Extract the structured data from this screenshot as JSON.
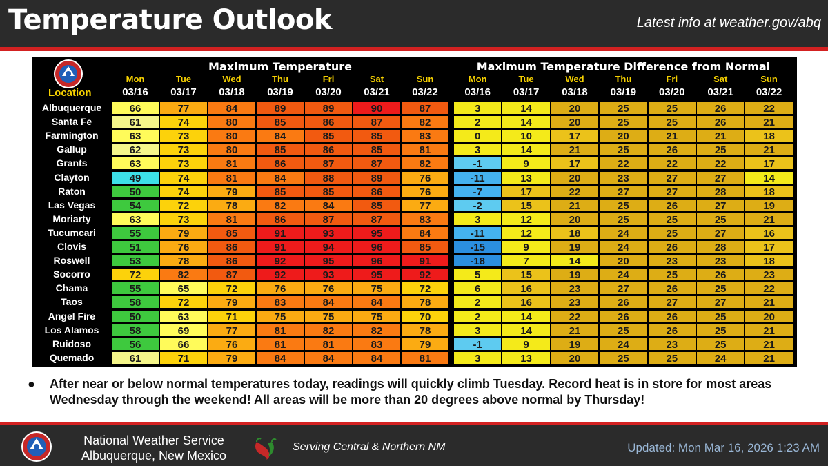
{
  "header": {
    "title": "Temperature Outlook",
    "info": "Latest info at weather.gov/abq"
  },
  "table": {
    "max_title": "Maximum Temperature",
    "diff_title": "Maximum Temperature Difference from Normal",
    "location_header": "Location",
    "days": [
      "Mon",
      "Tue",
      "Wed",
      "Thu",
      "Fri",
      "Sat",
      "Sun"
    ],
    "dates": [
      "03/16",
      "03/17",
      "03/18",
      "03/19",
      "03/20",
      "03/21",
      "03/22"
    ],
    "rows": [
      {
        "location": "Albuquerque",
        "max": [
          66,
          77,
          84,
          89,
          89,
          90,
          87
        ],
        "diff": [
          3,
          14,
          20,
          25,
          25,
          26,
          22
        ]
      },
      {
        "location": "Santa Fe",
        "max": [
          61,
          74,
          80,
          85,
          86,
          87,
          82
        ],
        "diff": [
          2,
          14,
          20,
          25,
          25,
          26,
          21
        ]
      },
      {
        "location": "Farmington",
        "max": [
          63,
          73,
          80,
          84,
          85,
          85,
          83
        ],
        "diff": [
          0,
          10,
          17,
          20,
          21,
          21,
          18
        ]
      },
      {
        "location": "Gallup",
        "max": [
          62,
          73,
          80,
          85,
          86,
          85,
          81
        ],
        "diff": [
          3,
          14,
          21,
          25,
          26,
          25,
          21
        ]
      },
      {
        "location": "Grants",
        "max": [
          63,
          73,
          81,
          86,
          87,
          87,
          82
        ],
        "diff": [
          -1,
          9,
          17,
          22,
          22,
          22,
          17
        ]
      },
      {
        "location": "Clayton",
        "max": [
          49,
          74,
          81,
          84,
          88,
          89,
          76
        ],
        "diff": [
          -11,
          13,
          20,
          23,
          27,
          27,
          14
        ]
      },
      {
        "location": "Raton",
        "max": [
          50,
          74,
          79,
          85,
          85,
          86,
          76
        ],
        "diff": [
          -7,
          17,
          22,
          27,
          27,
          28,
          18
        ]
      },
      {
        "location": "Las Vegas",
        "max": [
          54,
          72,
          78,
          82,
          84,
          85,
          77
        ],
        "diff": [
          -2,
          15,
          21,
          25,
          26,
          27,
          19
        ]
      },
      {
        "location": "Moriarty",
        "max": [
          63,
          73,
          81,
          86,
          87,
          87,
          83
        ],
        "diff": [
          3,
          12,
          20,
          25,
          25,
          25,
          21
        ]
      },
      {
        "location": "Tucumcari",
        "max": [
          55,
          79,
          85,
          91,
          93,
          95,
          84
        ],
        "diff": [
          -11,
          12,
          18,
          24,
          25,
          27,
          16
        ]
      },
      {
        "location": "Clovis",
        "max": [
          51,
          76,
          86,
          91,
          94,
          96,
          85
        ],
        "diff": [
          -15,
          9,
          19,
          24,
          26,
          28,
          17
        ]
      },
      {
        "location": "Roswell",
        "max": [
          53,
          78,
          86,
          92,
          95,
          96,
          91
        ],
        "diff": [
          -18,
          7,
          14,
          20,
          23,
          23,
          18
        ]
      },
      {
        "location": "Socorro",
        "max": [
          72,
          82,
          87,
          92,
          93,
          95,
          92
        ],
        "diff": [
          5,
          15,
          19,
          24,
          25,
          26,
          23
        ]
      },
      {
        "location": "Chama",
        "max": [
          55,
          65,
          72,
          76,
          76,
          75,
          72
        ],
        "diff": [
          6,
          16,
          23,
          27,
          26,
          25,
          22
        ]
      },
      {
        "location": "Taos",
        "max": [
          58,
          72,
          79,
          83,
          84,
          84,
          78
        ],
        "diff": [
          2,
          16,
          23,
          26,
          27,
          27,
          21
        ]
      },
      {
        "location": "Angel Fire",
        "max": [
          50,
          63,
          71,
          75,
          75,
          75,
          70
        ],
        "diff": [
          2,
          14,
          22,
          26,
          26,
          25,
          20
        ]
      },
      {
        "location": "Los Alamos",
        "max": [
          58,
          69,
          77,
          81,
          82,
          82,
          78
        ],
        "diff": [
          3,
          14,
          21,
          25,
          26,
          25,
          21
        ]
      },
      {
        "location": "Ruidoso",
        "max": [
          56,
          66,
          76,
          81,
          81,
          83,
          79
        ],
        "diff": [
          -1,
          9,
          19,
          24,
          23,
          25,
          21
        ]
      },
      {
        "location": "Quemado",
        "max": [
          61,
          71,
          79,
          84,
          84,
          84,
          81
        ],
        "diff": [
          3,
          13,
          20,
          25,
          25,
          24,
          21
        ]
      }
    ]
  },
  "bullet": {
    "dot": "●",
    "text": "After near or below normal temperatures today, readings will quickly climb Tuesday. Record heat is in store for most areas Wednesday through the weekend! All areas will be more than 20 degrees above normal by Thursday!"
  },
  "footer": {
    "office_line1": "National Weather Service",
    "office_line2": "Albuquerque, New Mexico",
    "serving": "Serving Central & Northern NM",
    "updated": "Updated: Mon Mar 16, 2026 1:23 AM"
  },
  "icons": {
    "seal": "noaa-nws-seal-icon",
    "chile": "chile-pepper-icon"
  },
  "colors": {
    "header_bg": "#2b2b2b",
    "accent_red": "#d32121",
    "day_label": "#f5d000"
  }
}
